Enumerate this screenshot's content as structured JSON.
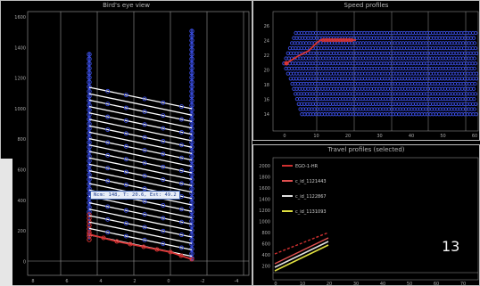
{
  "panels": {
    "birdseye": {
      "title": "Bird's eye view",
      "y_ticks": [
        "1600",
        "1400",
        "1200",
        "1000",
        "800",
        "600",
        "400",
        "200",
        "0"
      ],
      "x_ticks": [
        "8",
        "6",
        "4",
        "2",
        "0",
        "-2",
        "-4"
      ],
      "tooltip": "Ncm: 148, T: 20.6, Ext: 49.2"
    },
    "speed": {
      "title": "Speed profiles",
      "y_ticks": [
        "26",
        "24",
        "22",
        "20",
        "18",
        "16",
        "14"
      ],
      "x_ticks": [
        "0",
        "10",
        "20",
        "30",
        "40",
        "50",
        "60"
      ]
    },
    "travel": {
      "title": "Travel profiles (selected)",
      "y_ticks": [
        "2000",
        "1800",
        "1600",
        "1400",
        "1200",
        "1000",
        "800",
        "600",
        "400",
        "200"
      ],
      "x_ticks": [
        "0",
        "10",
        "20",
        "30",
        "40",
        "50",
        "60",
        "70"
      ],
      "legend": [
        {
          "label": "EGO-1-HR",
          "color": "#d03030"
        },
        {
          "label": "c_id_1121443",
          "color": "#e05050"
        },
        {
          "label": "c_id_1122867",
          "color": "#e0e0e0"
        },
        {
          "label": "c_id_1131093",
          "color": "#e0e040"
        }
      ],
      "overlay_number": "13"
    }
  },
  "colors": {
    "blue": "#3b4fe6",
    "red": "#d93434",
    "white": "#ffffff",
    "grid": "#9a9a9a"
  }
}
